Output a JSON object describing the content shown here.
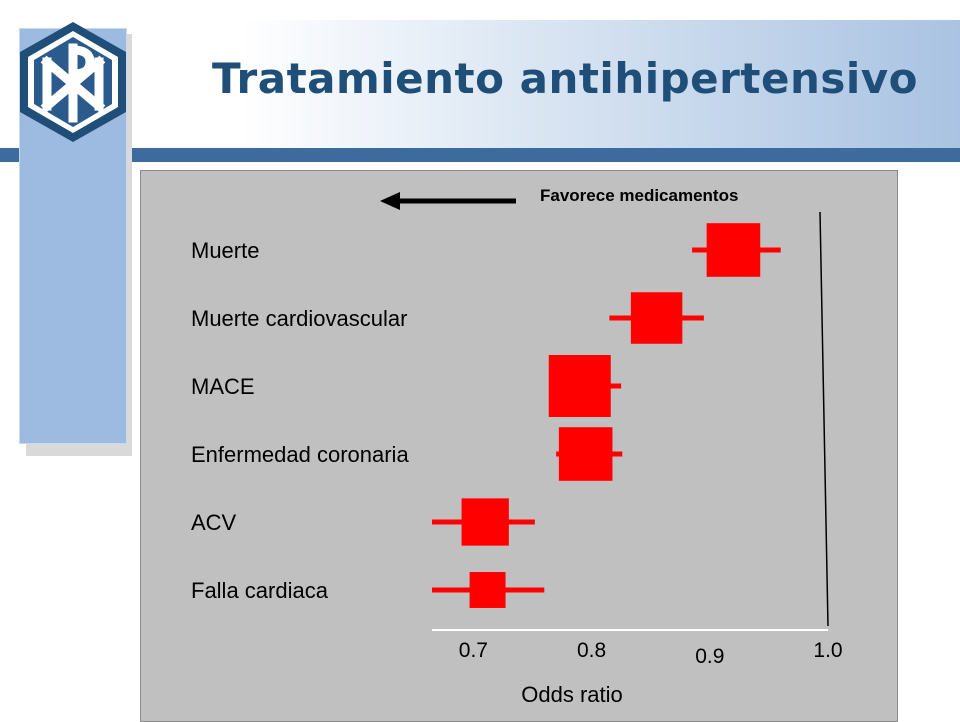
{
  "slide": {
    "title": "Tratamiento antihipertensivo",
    "logo_icon": "chi-rho-hexagon-logo",
    "colors": {
      "title": "#1f4e79",
      "accent_bar": "#3d6b9e",
      "side_panel": "#9dbbe0",
      "plot_bg": "#c0c0c0",
      "marker": "#ff0000"
    }
  },
  "chart_data": {
    "type": "forest",
    "xlabel": "Odds ratio",
    "annotation": "Favorece medicamentos",
    "xticks": [
      {
        "value": 0.7,
        "label": "0.7"
      },
      {
        "value": 0.8,
        "label": "0.8"
      },
      {
        "value": 0.9,
        "label": "0.9"
      },
      {
        "value": 1.0,
        "label": "1.0"
      }
    ],
    "xlim": [
      0.665,
      1.0
    ],
    "reference_value": 1.0,
    "grid": false,
    "rows": [
      {
        "label": "Muerte",
        "or": 0.92,
        "ci_low": 0.885,
        "ci_high": 0.96,
        "weight": 0.8
      },
      {
        "label": "Muerte cardiovascular",
        "or": 0.855,
        "ci_low": 0.815,
        "ci_high": 0.895,
        "weight": 0.75
      },
      {
        "label": "MACE",
        "or": 0.79,
        "ci_low": 0.765,
        "ci_high": 0.825,
        "weight": 1.0
      },
      {
        "label": "Enfermedad coronaria",
        "or": 0.795,
        "ci_low": 0.77,
        "ci_high": 0.826,
        "weight": 0.8
      },
      {
        "label": "ACV",
        "or": 0.71,
        "ci_low": 0.665,
        "ci_high": 0.752,
        "weight": 0.65
      },
      {
        "label": "Falla cardiaca",
        "or": 0.712,
        "ci_low": 0.665,
        "ci_high": 0.76,
        "weight": 0.38
      }
    ]
  }
}
